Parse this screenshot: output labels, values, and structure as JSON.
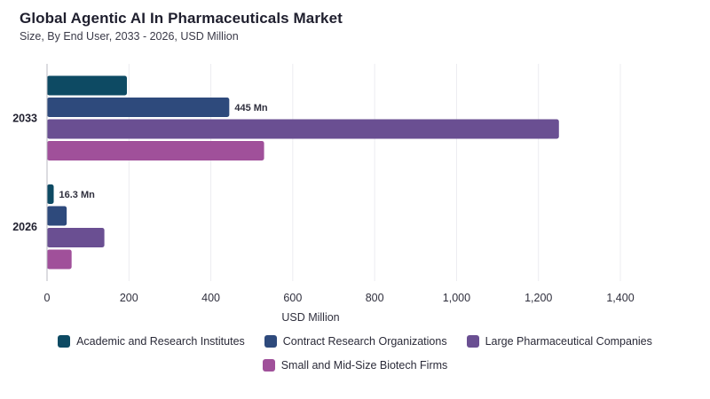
{
  "title": "Global Agentic AI In Pharmaceuticals Market",
  "subtitle": "Size, By End User, 2033 - 2026, USD Million",
  "chart_data": {
    "type": "bar",
    "orientation": "horizontal",
    "categories": [
      "2033",
      "2026"
    ],
    "series": [
      {
        "name": "Academic and Research Institutes",
        "color": "#0d4a63",
        "values": [
          195,
          16.3
        ]
      },
      {
        "name": "Contract Research Organizations",
        "color": "#2e4a7c",
        "values": [
          445,
          48
        ]
      },
      {
        "name": "Large Pharmaceutical Companies",
        "color": "#6a4f92",
        "values": [
          1250,
          140
        ]
      },
      {
        "name": "Small and Mid-Size Biotech Firms",
        "color": "#a0509a",
        "values": [
          530,
          60
        ]
      }
    ],
    "data_labels": [
      {
        "category": "2033",
        "series": "Contract Research Organizations",
        "text": "445 Mn"
      },
      {
        "category": "2026",
        "series": "Academic and Research Institutes",
        "text": "16.3 Mn"
      }
    ],
    "xlabel": "USD Million",
    "ylabel": "",
    "xlim": [
      0,
      1400
    ],
    "xticks": [
      0,
      200,
      400,
      600,
      800,
      1000,
      1200,
      1400
    ],
    "xtick_labels": [
      "0",
      "200",
      "400",
      "600",
      "800",
      "1,000",
      "1,200",
      "1,400"
    ],
    "grid": "vertical",
    "legend_position": "bottom"
  }
}
